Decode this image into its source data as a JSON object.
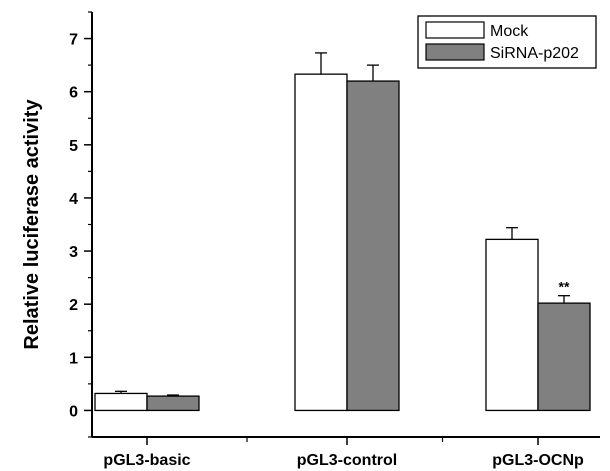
{
  "chart_data": {
    "type": "bar",
    "title": "",
    "xlabel": "",
    "ylabel": "Relative luciferase activity",
    "ylim": [
      -0.5,
      7.5
    ],
    "yticks": [
      "0",
      "1",
      "2",
      "3",
      "4",
      "5",
      "6",
      "7"
    ],
    "categories": [
      "pGL3-basic",
      "pGL3-control",
      "pGL3-OCNp"
    ],
    "series": [
      {
        "name": "Mock",
        "values": [
          0.32,
          6.33,
          3.22
        ],
        "errors": [
          0.04,
          0.4,
          0.22
        ],
        "color": "#ffffff"
      },
      {
        "name": "SiRNA-p202",
        "values": [
          0.27,
          6.2,
          2.02
        ],
        "errors": [
          0.02,
          0.3,
          0.14
        ],
        "color": "#808080"
      }
    ],
    "annotations": [
      {
        "text": "**",
        "category": "pGL3-OCNp",
        "series": "SiRNA-p202"
      }
    ],
    "legend_position": "top-right",
    "grid": false
  }
}
